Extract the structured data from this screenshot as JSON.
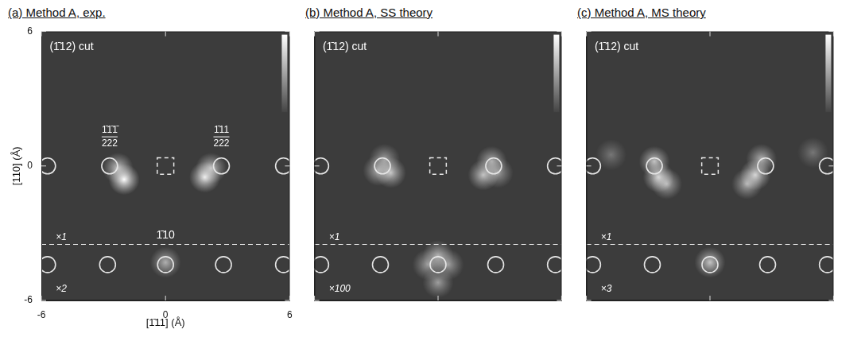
{
  "chart_data": [
    {
      "type": "scatter",
      "title": "(a) Method A, exp.",
      "xlabel": "[1̄11] (Å)",
      "ylabel": "[110] (Å)",
      "xlim": [
        -6,
        6
      ],
      "ylim": [
        -6,
        6
      ],
      "xticks": [
        -6,
        0,
        6
      ],
      "yticks": [
        -6,
        0,
        6
      ],
      "grid": false,
      "circles": {
        "x": [
          -5.7,
          -2.7,
          2.7,
          5.7,
          -5.7,
          -2.8,
          0,
          2.8,
          5.7
        ],
        "y": [
          0,
          0,
          0,
          0,
          -4.4,
          -4.4,
          -4.4,
          -4.4,
          -4.4
        ]
      },
      "spots": {
        "x": [
          -2.3,
          -2.0,
          2.2,
          1.9,
          0
        ],
        "y": [
          -0.1,
          -0.6,
          -0.1,
          -0.5,
          -4.3
        ],
        "intensity": [
          0.7,
          1.0,
          0.7,
          0.9,
          0.6
        ]
      },
      "box": [
        0,
        0
      ],
      "dashed_line_y": -3.5,
      "annotations": [
        {
          "text": "(1̄12) cut",
          "x": -5.6,
          "y": 5.3
        },
        {
          "text": [
            "1̄1̄1̄",
            "222"
          ],
          "x": -2.7,
          "y": 1.3
        },
        {
          "text": [
            "1̄11",
            "222"
          ],
          "x": 2.7,
          "y": 1.3
        },
        {
          "text": "1̄10",
          "x": 0,
          "y": -3.1
        },
        {
          "text": "×1",
          "x": -5.3,
          "y": -3.2
        },
        {
          "text": "×2",
          "x": -5.3,
          "y": -5.5
        }
      ]
    },
    {
      "type": "scatter",
      "title": "(b) Method A, SS theory",
      "xlim": [
        -6,
        6
      ],
      "ylim": [
        -6,
        6
      ],
      "xticks": [
        -6,
        0,
        6
      ],
      "yticks": [
        -6,
        0,
        6
      ],
      "grid": false,
      "tick_labels": false,
      "circles": {
        "x": [
          -5.7,
          -2.7,
          2.7,
          5.7,
          -5.7,
          -2.8,
          0,
          2.8,
          5.7
        ],
        "y": [
          0,
          0,
          0,
          0,
          -4.4,
          -4.4,
          -4.4,
          -4.4,
          -4.4
        ]
      },
      "spots": {
        "x": [
          -2.9,
          -2.3,
          -2.6,
          2.6,
          2.2,
          2.9,
          0,
          -0.5,
          0.5,
          0
        ],
        "y": [
          -0.2,
          -0.3,
          0.3,
          0.2,
          -0.4,
          -0.3,
          -4.0,
          -4.4,
          -4.4,
          -5.2
        ],
        "intensity": [
          0.6,
          0.7,
          0.5,
          0.6,
          0.7,
          0.5,
          0.6,
          0.5,
          0.5,
          0.5
        ]
      },
      "box": [
        0,
        0
      ],
      "dashed_line_y": -3.5,
      "annotations": [
        {
          "text": "(1̄12) cut",
          "x": -5.6,
          "y": 5.3
        },
        {
          "text": "×1",
          "x": -5.3,
          "y": -3.2
        },
        {
          "text": "×100",
          "x": -5.3,
          "y": -5.5
        }
      ]
    },
    {
      "type": "scatter",
      "title": "(c) Method A, MS theory",
      "xlim": [
        -6,
        6
      ],
      "ylim": [
        -6,
        6
      ],
      "xticks": [
        -6,
        0,
        6
      ],
      "yticks": [
        -6,
        0,
        6
      ],
      "grid": false,
      "tick_labels": false,
      "circles": {
        "x": [
          -5.7,
          -2.7,
          2.7,
          5.7,
          -5.7,
          -2.8,
          0,
          2.8,
          5.7
        ],
        "y": [
          0,
          0,
          0,
          0,
          -4.4,
          -4.4,
          -4.4,
          -4.4,
          -4.4
        ]
      },
      "spots": {
        "x": [
          -2.7,
          -2.5,
          -2.1,
          2.5,
          2.2,
          1.8,
          0,
          -4.8,
          5.0
        ],
        "y": [
          0.2,
          -0.5,
          -0.8,
          0.3,
          -0.4,
          -0.8,
          -4.3,
          0.5,
          0.6
        ],
        "intensity": [
          0.7,
          0.8,
          0.6,
          0.6,
          0.8,
          0.6,
          0.7,
          0.3,
          0.3
        ]
      },
      "box": [
        0,
        0
      ],
      "dashed_line_y": -3.5,
      "annotations": [
        {
          "text": "(1̄12) cut",
          "x": -5.6,
          "y": 5.3
        },
        {
          "text": "×1",
          "x": -5.3,
          "y": -3.2
        },
        {
          "text": "×3",
          "x": -5.3,
          "y": -5.5
        }
      ]
    }
  ]
}
